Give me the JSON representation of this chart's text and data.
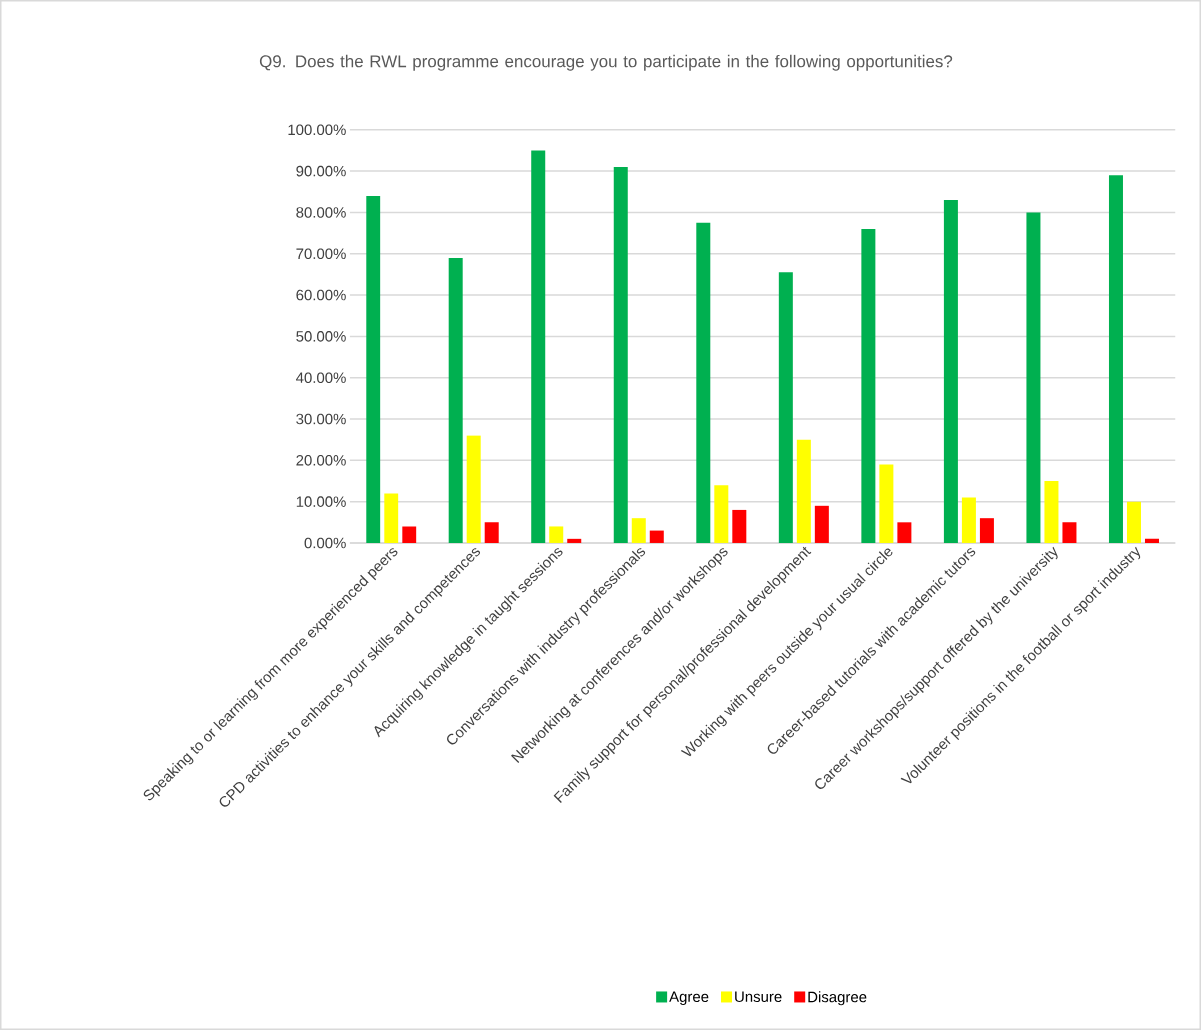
{
  "chart_data": {
    "type": "bar",
    "title": "Q9. Does the RWL programme encourage you to participate in the following opportunities?",
    "categories": [
      "Speaking to or learning from more experienced peers",
      "CPD activities to enhance your skills and competences",
      "Acquiring knowledge in taught sessions",
      "Conversations with industry professionals",
      "Networking at conferences and/or workshops",
      "Family support for personal/professional development",
      "Working with peers outside your usual circle",
      "Career-based tutorials with academic tutors",
      "Career workshops/support offered by the university",
      "Volunteer positions in the football or sport industry"
    ],
    "series": [
      {
        "name": "Agree",
        "color": "#00b050",
        "values": [
          84,
          69,
          95,
          91,
          77.5,
          65.5,
          76,
          83,
          80,
          89
        ]
      },
      {
        "name": "Unsure",
        "color": "#ffff00",
        "values": [
          12,
          26,
          4,
          6,
          14,
          25,
          19,
          11,
          15,
          10
        ]
      },
      {
        "name": "Disagree",
        "color": "#ff0000",
        "values": [
          4,
          5,
          1,
          3,
          8,
          9,
          5,
          6,
          5,
          1
        ]
      }
    ],
    "ylim": [
      0,
      100
    ],
    "yticks": [
      {
        "value": 0,
        "label": "0.00%"
      },
      {
        "value": 10,
        "label": "10.00%"
      },
      {
        "value": 20,
        "label": "20.00%"
      },
      {
        "value": 30,
        "label": "30.00%"
      },
      {
        "value": 40,
        "label": "40.00%"
      },
      {
        "value": 50,
        "label": "50.00%"
      },
      {
        "value": 60,
        "label": "60.00%"
      },
      {
        "value": 70,
        "label": "70.00%"
      },
      {
        "value": 80,
        "label": "80.00%"
      },
      {
        "value": 90,
        "label": "90.00%"
      },
      {
        "value": 100,
        "label": "100.00%"
      }
    ],
    "grid": "y",
    "legend": "bottom"
  }
}
